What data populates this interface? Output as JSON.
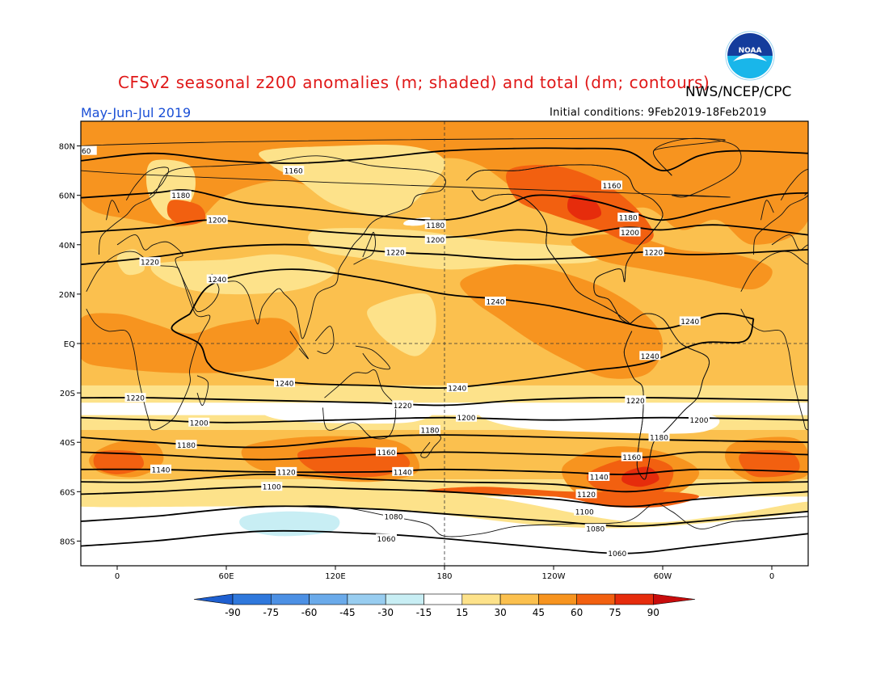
{
  "title": "CFSv2 seasonal z200 anomalies (m; shaded) and total (dm; contours)",
  "agency": "NWS/NCEP/CPC",
  "season": "May-Jun-Jul 2019",
  "init_conditions": "Initial conditions: 9Feb2019-18Feb2019",
  "logo_text": "NOAA",
  "lat_ticks": [
    {
      "lat": 80,
      "label": "80N"
    },
    {
      "lat": 60,
      "label": "60N"
    },
    {
      "lat": 40,
      "label": "40N"
    },
    {
      "lat": 20,
      "label": "20N"
    },
    {
      "lat": 0,
      "label": "EQ"
    },
    {
      "lat": -20,
      "label": "20S"
    },
    {
      "lat": -40,
      "label": "40S"
    },
    {
      "lat": -60,
      "label": "60S"
    },
    {
      "lat": -80,
      "label": "80S"
    }
  ],
  "lon_ticks": [
    {
      "lon": 0,
      "label": "0"
    },
    {
      "lon": 60,
      "label": "60E"
    },
    {
      "lon": 120,
      "label": "120E"
    },
    {
      "lon": 180,
      "label": "180"
    },
    {
      "lon": 240,
      "label": "120W"
    },
    {
      "lon": 300,
      "label": "60W"
    },
    {
      "lon": 360,
      "label": "0"
    }
  ],
  "colorbar": {
    "labels": [
      "-90",
      "-75",
      "-60",
      "-45",
      "-30",
      "-15",
      "15",
      "30",
      "45",
      "60",
      "75",
      "90"
    ],
    "colors": [
      "#1e5fd0",
      "#2f78dc",
      "#4c90e4",
      "#6aaaea",
      "#98cdf0",
      "#c8eef4",
      "#ffffff",
      "#fde28a",
      "#fbc04e",
      "#f7941f",
      "#f26010",
      "#e62c0c",
      "#c80c0c"
    ]
  },
  "anomaly_colors": {
    "a15": "#fde28a",
    "a30": "#fbc04e",
    "a45": "#f7941f",
    "a60": "#f26010",
    "a75": "#e62c0c",
    "n15": "#c8eef4",
    "n30": "#98cdf0"
  },
  "contours": [
    {
      "value": 1160,
      "label": "1160",
      "points": [
        [
          -20,
          74
        ],
        [
          20,
          77
        ],
        [
          60,
          74
        ],
        [
          100,
          73
        ],
        [
          140,
          75
        ],
        [
          180,
          78
        ],
        [
          220,
          79
        ],
        [
          250,
          79
        ],
        [
          280,
          78
        ],
        [
          300,
          70
        ],
        [
          320,
          76
        ],
        [
          340,
          78
        ],
        [
          380,
          77
        ]
      ],
      "labels": [
        {
          "lon": 97,
          "lat": 70,
          "text": "1160"
        },
        {
          "lon": 272,
          "lat": 64,
          "text": "1160"
        },
        {
          "lon": -17,
          "lat": 78,
          "text": "60"
        }
      ]
    },
    {
      "value": 1180,
      "label": "1180",
      "points": [
        [
          -20,
          59
        ],
        [
          20,
          61
        ],
        [
          40,
          62
        ],
        [
          70,
          57
        ],
        [
          100,
          55
        ],
        [
          140,
          52
        ],
        [
          180,
          50
        ],
        [
          210,
          55
        ],
        [
          230,
          60
        ],
        [
          260,
          58
        ],
        [
          280,
          54
        ],
        [
          300,
          50
        ],
        [
          330,
          55
        ],
        [
          360,
          60
        ],
        [
          380,
          61
        ]
      ],
      "labels": [
        {
          "lon": 35,
          "lat": 60,
          "text": "1180"
        },
        {
          "lon": 175,
          "lat": 48,
          "text": "1180"
        },
        {
          "lon": 281,
          "lat": 51,
          "text": "1180"
        }
      ]
    },
    {
      "value": 1200,
      "label": "1200",
      "points": [
        [
          -20,
          45
        ],
        [
          20,
          47
        ],
        [
          50,
          50
        ],
        [
          80,
          48
        ],
        [
          120,
          45
        ],
        [
          180,
          43
        ],
        [
          220,
          46
        ],
        [
          250,
          44
        ],
        [
          280,
          47
        ],
        [
          300,
          46
        ],
        [
          330,
          48
        ],
        [
          380,
          44
        ]
      ],
      "labels": [
        {
          "lon": 55,
          "lat": 50,
          "text": "1200"
        },
        {
          "lon": 175,
          "lat": 42,
          "text": "1200"
        },
        {
          "lon": 282,
          "lat": 45,
          "text": "1200"
        }
      ]
    },
    {
      "value": 1220,
      "label": "1220",
      "points": [
        [
          -20,
          32
        ],
        [
          20,
          35
        ],
        [
          60,
          39
        ],
        [
          100,
          40
        ],
        [
          150,
          37
        ],
        [
          180,
          36
        ],
        [
          220,
          34
        ],
        [
          260,
          35
        ],
        [
          290,
          37
        ],
        [
          320,
          36
        ],
        [
          380,
          38
        ]
      ],
      "labels": [
        {
          "lon": 18,
          "lat": 33,
          "text": "1220"
        },
        {
          "lon": 153,
          "lat": 37,
          "text": "1220"
        },
        {
          "lon": 295,
          "lat": 37,
          "text": "1220"
        }
      ]
    },
    {
      "value": 1240,
      "label": "1240",
      "points": [
        [
          40,
          12
        ],
        [
          50,
          23
        ],
        [
          70,
          28
        ],
        [
          100,
          30
        ],
        [
          140,
          26
        ],
        [
          180,
          20
        ],
        [
          210,
          18
        ],
        [
          240,
          15
        ],
        [
          270,
          10
        ],
        [
          300,
          6
        ],
        [
          330,
          12
        ],
        [
          350,
          10
        ]
      ],
      "labels": [
        {
          "lon": 55,
          "lat": 26,
          "text": "1240"
        },
        {
          "lon": 208,
          "lat": 17,
          "text": "1240"
        },
        {
          "lon": 315,
          "lat": 9,
          "text": "1240"
        }
      ]
    },
    {
      "value": 1240,
      "label": "1240",
      "points": [
        [
          40,
          12
        ],
        [
          30,
          6
        ],
        [
          45,
          0
        ],
        [
          50,
          -8
        ],
        [
          60,
          -12
        ],
        [
          100,
          -16
        ],
        [
          140,
          -17
        ],
        [
          180,
          -18
        ],
        [
          220,
          -15
        ],
        [
          260,
          -11
        ],
        [
          290,
          -8
        ],
        [
          320,
          0
        ],
        [
          345,
          1
        ],
        [
          350,
          10
        ]
      ],
      "labels": [
        {
          "lon": 92,
          "lat": -16,
          "text": "1240"
        },
        {
          "lon": 187,
          "lat": -18,
          "text": "1240"
        },
        {
          "lon": 293,
          "lat": -5,
          "text": "1240"
        }
      ]
    },
    {
      "value": 1220,
      "label": "1220",
      "points": [
        [
          -20,
          -22
        ],
        [
          20,
          -22
        ],
        [
          80,
          -23
        ],
        [
          140,
          -24
        ],
        [
          180,
          -25
        ],
        [
          220,
          -23
        ],
        [
          260,
          -22
        ],
        [
          300,
          -22
        ],
        [
          380,
          -23
        ]
      ],
      "labels": [
        {
          "lon": 10,
          "lat": -22,
          "text": "1220"
        },
        {
          "lon": 157,
          "lat": -25,
          "text": "1220"
        },
        {
          "lon": 285,
          "lat": -23,
          "text": "1220"
        }
      ]
    },
    {
      "value": 1200,
      "label": "1200",
      "points": [
        [
          -20,
          -30
        ],
        [
          20,
          -31
        ],
        [
          60,
          -32
        ],
        [
          120,
          -31
        ],
        [
          180,
          -30
        ],
        [
          240,
          -31
        ],
        [
          300,
          -30
        ],
        [
          380,
          -31
        ]
      ],
      "labels": [
        {
          "lon": 45,
          "lat": -32,
          "text": "1200"
        },
        {
          "lon": 192,
          "lat": -30,
          "text": "1200"
        },
        {
          "lon": 320,
          "lat": -31,
          "text": "1200"
        }
      ]
    },
    {
      "value": 1180,
      "label": "1180",
      "points": [
        [
          -20,
          -38
        ],
        [
          20,
          -40
        ],
        [
          80,
          -42
        ],
        [
          140,
          -38
        ],
        [
          180,
          -37
        ],
        [
          240,
          -38
        ],
        [
          300,
          -39
        ],
        [
          380,
          -40
        ]
      ],
      "labels": [
        {
          "lon": 38,
          "lat": -41,
          "text": "1180"
        },
        {
          "lon": 172,
          "lat": -35,
          "text": "1180"
        },
        {
          "lon": 298,
          "lat": -38,
          "text": "1180"
        }
      ]
    },
    {
      "value": 1160,
      "label": "1160",
      "points": [
        [
          -20,
          -44
        ],
        [
          20,
          -45
        ],
        [
          80,
          -47
        ],
        [
          140,
          -45
        ],
        [
          180,
          -44
        ],
        [
          240,
          -45
        ],
        [
          290,
          -46
        ],
        [
          320,
          -44
        ],
        [
          380,
          -45
        ]
      ],
      "labels": [
        {
          "lon": 148,
          "lat": -44,
          "text": "1160"
        },
        {
          "lon": 283,
          "lat": -46,
          "text": "1160"
        }
      ]
    },
    {
      "value": 1140,
      "label": "1140",
      "points": [
        [
          -20,
          -51
        ],
        [
          20,
          -51
        ],
        [
          80,
          -52
        ],
        [
          140,
          -52
        ],
        [
          180,
          -51
        ],
        [
          240,
          -52
        ],
        [
          280,
          -53
        ],
        [
          320,
          -51
        ],
        [
          380,
          -52
        ]
      ],
      "labels": [
        {
          "lon": 24,
          "lat": -51,
          "text": "1140"
        },
        {
          "lon": 157,
          "lat": -52,
          "text": "1140"
        },
        {
          "lon": 265,
          "lat": -54,
          "text": "1140"
        }
      ]
    },
    {
      "value": 1120,
      "label": "1120",
      "points": [
        [
          -20,
          -56
        ],
        [
          20,
          -56
        ],
        [
          80,
          -53
        ],
        [
          140,
          -55
        ],
        [
          180,
          -56
        ],
        [
          240,
          -57
        ],
        [
          280,
          -60
        ],
        [
          320,
          -57
        ],
        [
          380,
          -56
        ]
      ],
      "labels": [
        {
          "lon": 93,
          "lat": -52,
          "text": "1120"
        },
        {
          "lon": 258,
          "lat": -61,
          "text": "1120"
        }
      ]
    },
    {
      "value": 1100,
      "label": "1100",
      "points": [
        [
          -20,
          -61
        ],
        [
          20,
          -60
        ],
        [
          80,
          -58
        ],
        [
          140,
          -59
        ],
        [
          180,
          -60
        ],
        [
          240,
          -63
        ],
        [
          280,
          -66
        ],
        [
          320,
          -63
        ],
        [
          380,
          -60
        ]
      ],
      "labels": [
        {
          "lon": 85,
          "lat": -58,
          "text": "1100"
        },
        {
          "lon": 257,
          "lat": -68,
          "text": "1100"
        }
      ]
    },
    {
      "value": 1080,
      "label": "1080",
      "points": [
        [
          -20,
          -72
        ],
        [
          20,
          -70
        ],
        [
          80,
          -66
        ],
        [
          140,
          -67
        ],
        [
          180,
          -69
        ],
        [
          240,
          -72
        ],
        [
          280,
          -74
        ],
        [
          320,
          -72
        ],
        [
          380,
          -68
        ]
      ],
      "labels": [
        {
          "lon": 152,
          "lat": -70,
          "text": "1080"
        },
        {
          "lon": 263,
          "lat": -75,
          "text": "1080"
        }
      ]
    },
    {
      "value": 1060,
      "label": "1060",
      "points": [
        [
          -20,
          -82
        ],
        [
          20,
          -80
        ],
        [
          80,
          -76
        ],
        [
          140,
          -77
        ],
        [
          180,
          -79
        ],
        [
          240,
          -83
        ],
        [
          280,
          -85
        ],
        [
          320,
          -82
        ],
        [
          380,
          -77
        ]
      ],
      "labels": [
        {
          "lon": 148,
          "lat": -79,
          "text": "1060"
        },
        {
          "lon": 275,
          "lat": -85,
          "text": "1060"
        }
      ]
    }
  ]
}
